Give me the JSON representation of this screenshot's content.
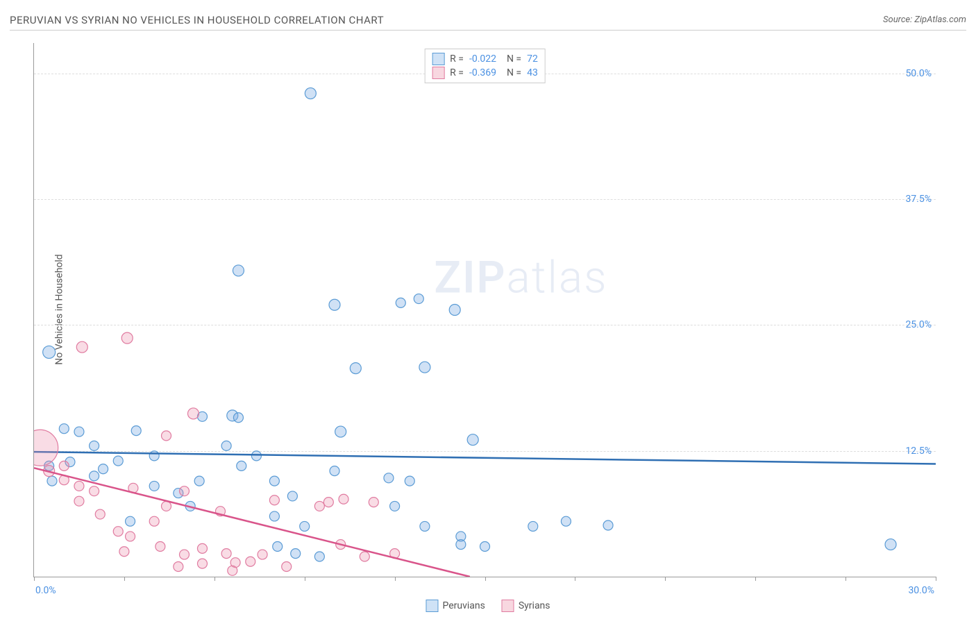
{
  "header": {
    "title": "PERUVIAN VS SYRIAN NO VEHICLES IN HOUSEHOLD CORRELATION CHART",
    "source": "Source: ZipAtlas.com"
  },
  "ylabel": "No Vehicles in Household",
  "watermark": {
    "bold": "ZIP",
    "light": "atlas"
  },
  "chart": {
    "type": "scatter",
    "background_color": "#ffffff",
    "grid_color": "#dddddd",
    "xlim": [
      0,
      30
    ],
    "ylim": [
      0,
      53
    ],
    "xtick_step": 3,
    "xtick_labels": {
      "0": "0.0%",
      "30": "30.0%"
    },
    "ytick_vals": [
      12.5,
      25.0,
      37.5,
      50.0
    ],
    "ytick_labels": [
      "12.5%",
      "25.0%",
      "37.5%",
      "50.0%"
    ],
    "axis_color": "#999999",
    "tick_label_color": "#4a90e2",
    "label_fontsize": 14,
    "marker_base_radius": 7,
    "series": [
      {
        "name": "Peruvians",
        "color_fill": "rgba(120,170,225,0.35)",
        "color_stroke": "#5a9bd5",
        "swatch_fill": "#cfe2f6",
        "swatch_stroke": "#5a9bd5",
        "R": "-0.022",
        "N": "72",
        "trend": {
          "x0": 0,
          "y0": 12.4,
          "x1": 30,
          "y1": 11.2,
          "stroke": "#2f6fb3",
          "width": 2.5
        },
        "points": [
          {
            "x": 0.5,
            "y": 22.3,
            "r": 9
          },
          {
            "x": 9.2,
            "y": 48.0,
            "r": 8
          },
          {
            "x": 6.8,
            "y": 30.4,
            "r": 8
          },
          {
            "x": 10.0,
            "y": 27.0,
            "r": 8
          },
          {
            "x": 12.2,
            "y": 27.2,
            "r": 7
          },
          {
            "x": 12.8,
            "y": 27.6,
            "r": 7
          },
          {
            "x": 14.0,
            "y": 26.5,
            "r": 8
          },
          {
            "x": 10.7,
            "y": 20.7,
            "r": 8
          },
          {
            "x": 13.0,
            "y": 20.8,
            "r": 8
          },
          {
            "x": 14.6,
            "y": 13.6,
            "r": 8
          },
          {
            "x": 10.2,
            "y": 14.4,
            "r": 8
          },
          {
            "x": 6.6,
            "y": 16.0,
            "r": 8
          },
          {
            "x": 6.8,
            "y": 15.8,
            "r": 7
          },
          {
            "x": 5.6,
            "y": 15.9,
            "r": 7
          },
          {
            "x": 6.4,
            "y": 13.0,
            "r": 7
          },
          {
            "x": 1.0,
            "y": 14.7,
            "r": 7
          },
          {
            "x": 1.5,
            "y": 14.4,
            "r": 7
          },
          {
            "x": 2.0,
            "y": 13.0,
            "r": 7
          },
          {
            "x": 2.8,
            "y": 11.5,
            "r": 7
          },
          {
            "x": 3.4,
            "y": 14.5,
            "r": 7
          },
          {
            "x": 4.0,
            "y": 12.0,
            "r": 7
          },
          {
            "x": 6.9,
            "y": 11.0,
            "r": 7
          },
          {
            "x": 7.4,
            "y": 12.0,
            "r": 7
          },
          {
            "x": 8.0,
            "y": 9.5,
            "r": 7
          },
          {
            "x": 8.6,
            "y": 8.0,
            "r": 7
          },
          {
            "x": 11.8,
            "y": 9.8,
            "r": 7
          },
          {
            "x": 12.5,
            "y": 9.5,
            "r": 7
          },
          {
            "x": 12.0,
            "y": 7.0,
            "r": 7
          },
          {
            "x": 13.0,
            "y": 5.0,
            "r": 7
          },
          {
            "x": 14.2,
            "y": 4.0,
            "r": 7
          },
          {
            "x": 14.2,
            "y": 3.2,
            "r": 7
          },
          {
            "x": 15.0,
            "y": 3.0,
            "r": 7
          },
          {
            "x": 16.6,
            "y": 5.0,
            "r": 7
          },
          {
            "x": 17.7,
            "y": 5.5,
            "r": 7
          },
          {
            "x": 8.1,
            "y": 3.0,
            "r": 7
          },
          {
            "x": 8.7,
            "y": 2.3,
            "r": 7
          },
          {
            "x": 9.5,
            "y": 2.0,
            "r": 7
          },
          {
            "x": 10.0,
            "y": 10.5,
            "r": 7
          },
          {
            "x": 2.0,
            "y": 10.0,
            "r": 7
          },
          {
            "x": 1.2,
            "y": 11.4,
            "r": 7
          },
          {
            "x": 0.5,
            "y": 11.0,
            "r": 7
          },
          {
            "x": 0.6,
            "y": 9.5,
            "r": 7
          },
          {
            "x": 4.0,
            "y": 9.0,
            "r": 7
          },
          {
            "x": 4.8,
            "y": 8.3,
            "r": 7
          },
          {
            "x": 5.5,
            "y": 9.5,
            "r": 7
          },
          {
            "x": 5.2,
            "y": 7.0,
            "r": 7
          },
          {
            "x": 3.2,
            "y": 5.5,
            "r": 7
          },
          {
            "x": 2.3,
            "y": 10.7,
            "r": 7
          },
          {
            "x": 28.5,
            "y": 3.2,
            "r": 8
          },
          {
            "x": 19.1,
            "y": 5.1,
            "r": 7
          },
          {
            "x": 8.0,
            "y": 6.0,
            "r": 7
          },
          {
            "x": 9.0,
            "y": 5.0,
            "r": 7
          }
        ]
      },
      {
        "name": "Syrians",
        "color_fill": "rgba(235,140,170,0.30)",
        "color_stroke": "#e07ba0",
        "swatch_fill": "#f8d7e0",
        "swatch_stroke": "#e07ba0",
        "R": "-0.369",
        "N": "43",
        "trend": {
          "x0": 0,
          "y0": 10.8,
          "x1": 14.5,
          "y1": 0,
          "stroke": "#d9548a",
          "width": 2.5
        },
        "points": [
          {
            "x": 0.2,
            "y": 12.8,
            "r": 26
          },
          {
            "x": 1.6,
            "y": 22.8,
            "r": 8
          },
          {
            "x": 3.1,
            "y": 23.7,
            "r": 8
          },
          {
            "x": 5.3,
            "y": 16.2,
            "r": 8
          },
          {
            "x": 4.4,
            "y": 14.0,
            "r": 7
          },
          {
            "x": 0.5,
            "y": 10.5,
            "r": 8
          },
          {
            "x": 1.0,
            "y": 9.6,
            "r": 7
          },
          {
            "x": 1.5,
            "y": 9.0,
            "r": 7
          },
          {
            "x": 1.5,
            "y": 7.5,
            "r": 7
          },
          {
            "x": 2.0,
            "y": 8.5,
            "r": 7
          },
          {
            "x": 2.2,
            "y": 6.2,
            "r": 7
          },
          {
            "x": 2.8,
            "y": 4.5,
            "r": 7
          },
          {
            "x": 3.3,
            "y": 8.8,
            "r": 7
          },
          {
            "x": 3.2,
            "y": 4.0,
            "r": 7
          },
          {
            "x": 3.0,
            "y": 2.5,
            "r": 7
          },
          {
            "x": 4.0,
            "y": 5.5,
            "r": 7
          },
          {
            "x": 4.4,
            "y": 7.0,
            "r": 7
          },
          {
            "x": 5.0,
            "y": 8.5,
            "r": 7
          },
          {
            "x": 4.2,
            "y": 3.0,
            "r": 7
          },
          {
            "x": 5.0,
            "y": 2.2,
            "r": 7
          },
          {
            "x": 4.8,
            "y": 1.0,
            "r": 7
          },
          {
            "x": 5.6,
            "y": 2.8,
            "r": 7
          },
          {
            "x": 5.6,
            "y": 1.3,
            "r": 7
          },
          {
            "x": 6.2,
            "y": 6.5,
            "r": 7
          },
          {
            "x": 6.4,
            "y": 2.3,
            "r": 7
          },
          {
            "x": 6.7,
            "y": 1.4,
            "r": 7
          },
          {
            "x": 6.6,
            "y": 0.6,
            "r": 7
          },
          {
            "x": 7.2,
            "y": 1.5,
            "r": 7
          },
          {
            "x": 7.6,
            "y": 2.2,
            "r": 7
          },
          {
            "x": 8.0,
            "y": 7.6,
            "r": 7
          },
          {
            "x": 8.4,
            "y": 1.0,
            "r": 7
          },
          {
            "x": 9.5,
            "y": 7.0,
            "r": 7
          },
          {
            "x": 9.8,
            "y": 7.4,
            "r": 7
          },
          {
            "x": 10.2,
            "y": 3.2,
            "r": 7
          },
          {
            "x": 10.3,
            "y": 7.7,
            "r": 7
          },
          {
            "x": 11.0,
            "y": 2.0,
            "r": 7
          },
          {
            "x": 11.3,
            "y": 7.4,
            "r": 7
          },
          {
            "x": 12.0,
            "y": 2.3,
            "r": 7
          },
          {
            "x": 1.0,
            "y": 11.0,
            "r": 7
          }
        ]
      }
    ],
    "legend_bottom": [
      {
        "label": "Peruvians",
        "fill": "#cfe2f6",
        "stroke": "#5a9bd5"
      },
      {
        "label": "Syrians",
        "fill": "#f8d7e0",
        "stroke": "#e07ba0"
      }
    ]
  }
}
